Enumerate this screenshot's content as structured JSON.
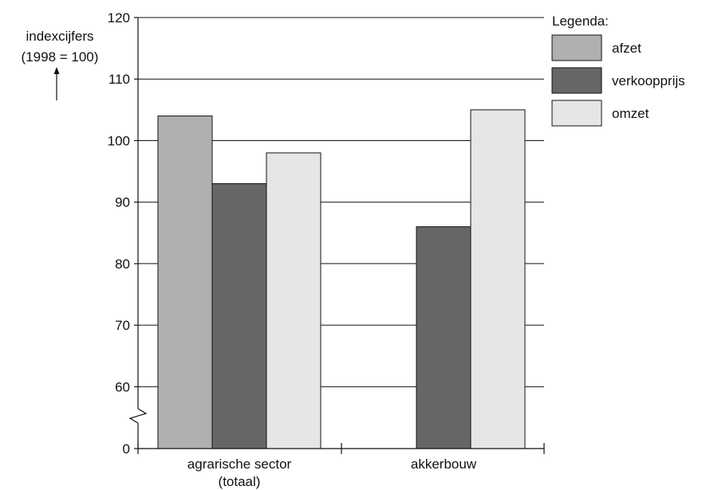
{
  "chart_data": {
    "type": "bar",
    "ylabel": [
      "indexcijfers",
      "(1998 = 100)"
    ],
    "yticks": [
      0,
      60,
      70,
      80,
      90,
      100,
      110,
      120
    ],
    "ylim": [
      55,
      120
    ],
    "y_axis_break": true,
    "grid": true,
    "categories": [
      [
        "agrarische sector",
        "(totaal)"
      ],
      [
        "akkerbouw"
      ]
    ],
    "series": [
      {
        "name": "afzet",
        "color": "#b0b0b0",
        "values": [
          104,
          null
        ]
      },
      {
        "name": "verkoopprijs",
        "color": "#666666",
        "values": [
          93,
          86
        ]
      },
      {
        "name": "omzet",
        "color": "#e6e6e6",
        "values": [
          98,
          105
        ]
      }
    ],
    "legend": {
      "title": "Legenda:",
      "placement": "top-right"
    }
  }
}
